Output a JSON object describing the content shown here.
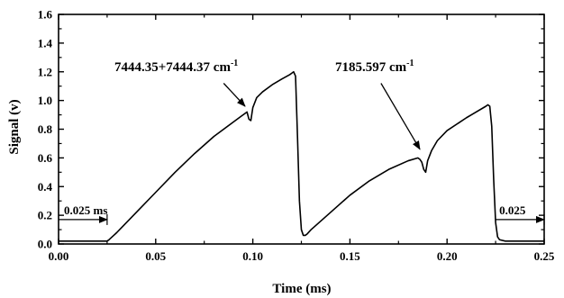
{
  "chart_data": {
    "type": "line",
    "xlabel": "Time (ms)",
    "ylabel": "Signal (v)",
    "xlim": [
      0.0,
      0.25
    ],
    "ylim": [
      0.0,
      1.6
    ],
    "xticks": [
      "0.00",
      "0.05",
      "0.10",
      "0.15",
      "0.20",
      "0.25"
    ],
    "yticks": [
      "0.0",
      "0.2",
      "0.4",
      "0.6",
      "0.8",
      "1.0",
      "1.2",
      "1.4",
      "1.6"
    ],
    "grid": false,
    "colors": {
      "line": "#000000",
      "axis": "#000000"
    },
    "series": [
      {
        "x": [
          0.0,
          0.01,
          0.02,
          0.024,
          0.025,
          0.026,
          0.03,
          0.04,
          0.05,
          0.06,
          0.07,
          0.08,
          0.09,
          0.094,
          0.096,
          0.097,
          0.098,
          0.099,
          0.1,
          0.102,
          0.105,
          0.11,
          0.115,
          0.119,
          0.12,
          0.121,
          0.122,
          0.123,
          0.124,
          0.125,
          0.126,
          0.127,
          0.128,
          0.13,
          0.14,
          0.15,
          0.16,
          0.17,
          0.18,
          0.185,
          0.186,
          0.187,
          0.188,
          0.189,
          0.19,
          0.192,
          0.195,
          0.2,
          0.21,
          0.22,
          0.221,
          0.222,
          0.223,
          0.224,
          0.225,
          0.226,
          0.227,
          0.23,
          0.24,
          0.25
        ],
        "y": [
          0.02,
          0.02,
          0.02,
          0.02,
          0.02,
          0.03,
          0.08,
          0.22,
          0.36,
          0.5,
          0.63,
          0.75,
          0.85,
          0.89,
          0.91,
          0.92,
          0.87,
          0.86,
          0.95,
          1.02,
          1.06,
          1.11,
          1.15,
          1.18,
          1.19,
          1.2,
          1.17,
          0.75,
          0.3,
          0.1,
          0.06,
          0.06,
          0.07,
          0.1,
          0.22,
          0.34,
          0.44,
          0.52,
          0.58,
          0.6,
          0.59,
          0.57,
          0.52,
          0.5,
          0.58,
          0.65,
          0.72,
          0.79,
          0.88,
          0.96,
          0.97,
          0.96,
          0.82,
          0.45,
          0.15,
          0.05,
          0.03,
          0.02,
          0.02,
          0.02
        ]
      }
    ],
    "annotations": [
      {
        "base": "7444.35+7444.37 cm",
        "sup": "-1",
        "arrow_from": [
          0.085,
          1.12
        ],
        "arrow_to": [
          0.096,
          0.96
        ]
      },
      {
        "base": "7185.597 cm",
        "sup": "-1",
        "arrow_from": [
          0.166,
          1.12
        ],
        "arrow_to": [
          0.186,
          0.66
        ]
      }
    ],
    "intervals": [
      {
        "label": "0.025 ms",
        "x0": 0.0,
        "x1": 0.025,
        "y": 0.17
      },
      {
        "label": "0.025",
        "x0": 0.225,
        "x1": 0.25,
        "y": 0.17
      }
    ]
  }
}
